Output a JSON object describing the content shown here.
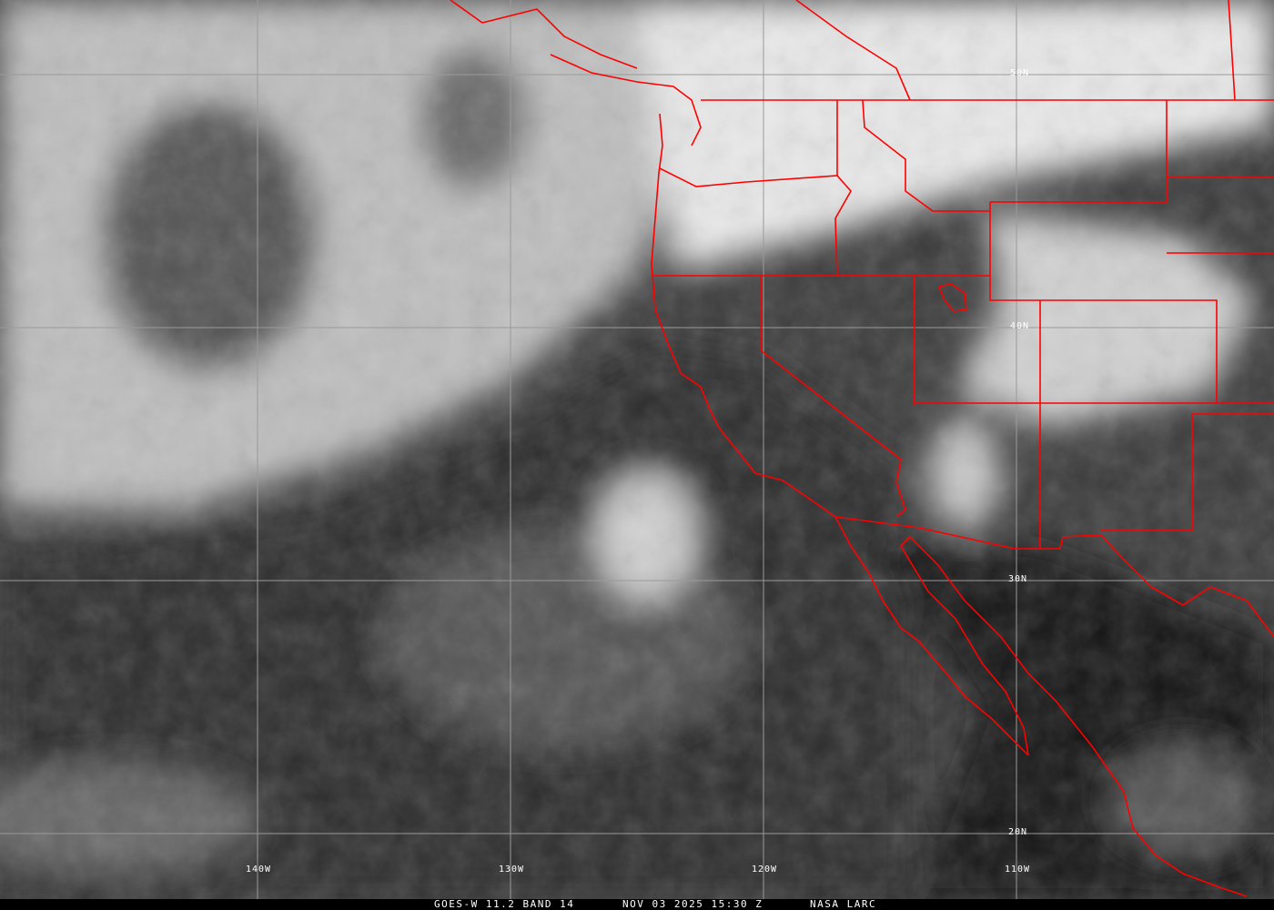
{
  "footer": {
    "satellite_band": "GOES-W 11.2 BAND 14",
    "datetime": "NOV 03 2025 15:30 Z",
    "source": "NASA LARC"
  },
  "grid": {
    "latitudes": [
      "50N",
      "40N",
      "30N",
      "20N"
    ],
    "longitudes": [
      "140W",
      "130W",
      "120W",
      "110W"
    ]
  },
  "colors": {
    "borders": "#ff0000",
    "grid": "#9a9a9a",
    "labels": "#ffffff"
  }
}
